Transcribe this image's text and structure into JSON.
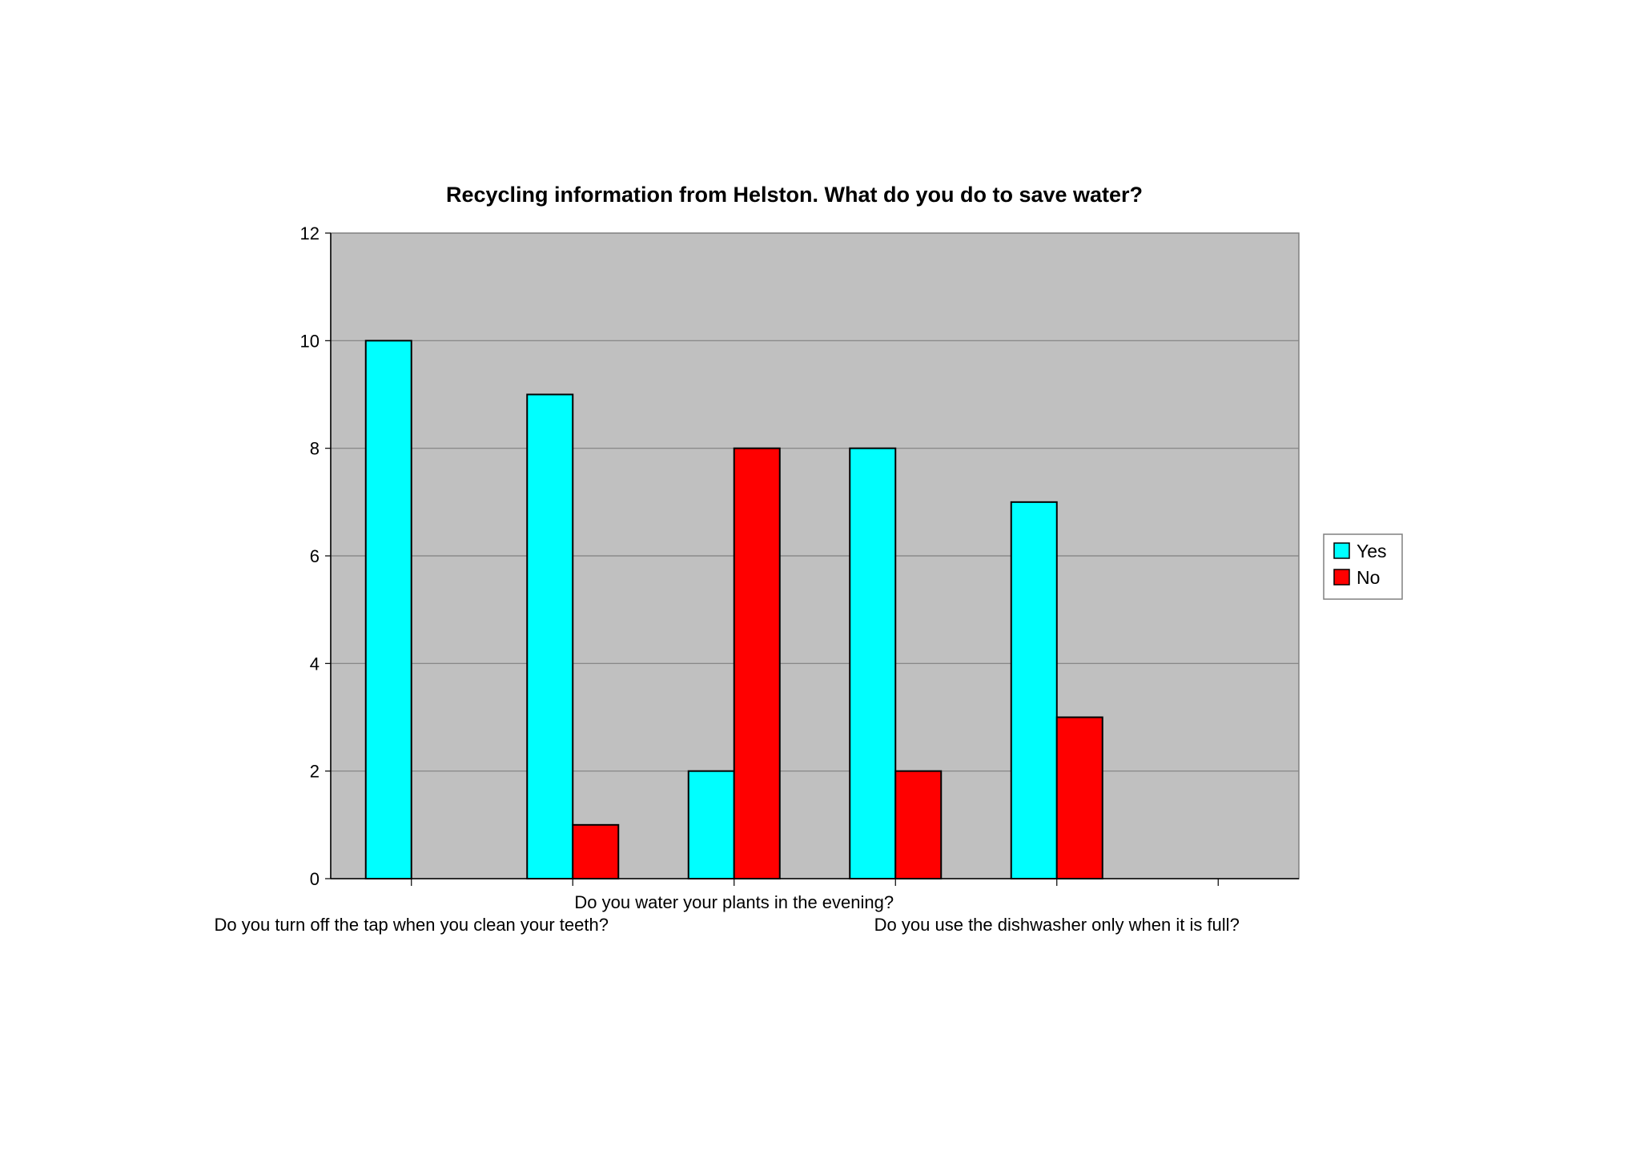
{
  "chart_data": {
    "type": "bar",
    "title": "Recycling information from Helston. What do you do to save water?",
    "xlabel": "",
    "ylabel": "",
    "ylim": [
      0,
      12
    ],
    "yticks": [
      "0",
      "2",
      "4",
      "6",
      "8",
      "10",
      "12"
    ],
    "grid": true,
    "legend_position": "right",
    "category_count": 6,
    "categories": [
      "Do you turn off the tap when you clean your teeth?",
      "",
      "Do you water your plants in the evening?",
      "",
      "Do you use the dishwasher only when it is full?",
      ""
    ],
    "series": [
      {
        "name": "Yes",
        "color": "#00FFFF",
        "values": [
          10,
          9,
          2,
          8,
          7,
          null
        ]
      },
      {
        "name": "No",
        "color": "#FF0000",
        "values": [
          null,
          1,
          8,
          2,
          3,
          null
        ]
      }
    ],
    "plot_background": "#C0C0C0"
  }
}
